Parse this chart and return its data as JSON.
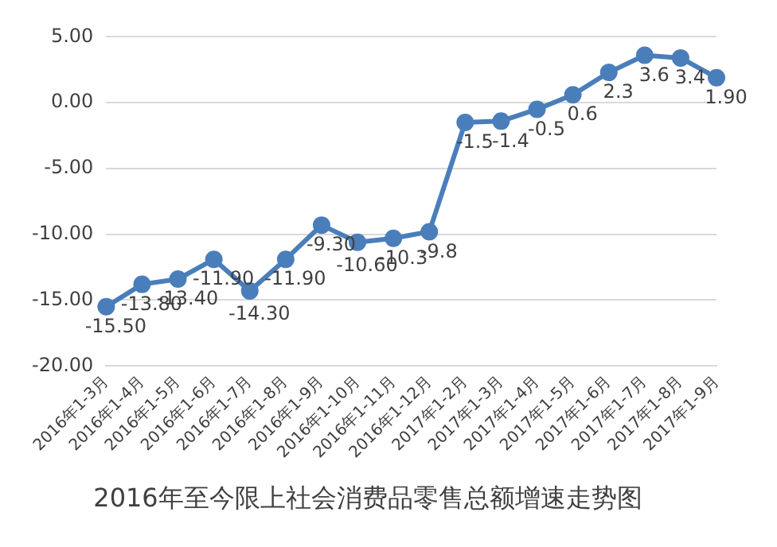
{
  "chart_data": {
    "type": "line",
    "title": "2016年至今限上社会消费品零售总额增速走势图",
    "categories": [
      "2016年1-3月",
      "2016年1-4月",
      "2016年1-5月",
      "2016年1-6月",
      "2016年1-7月",
      "2016年1-8月",
      "2016年1-9月",
      "2016年1-10月",
      "2016年1-11月",
      "2016年1-12月",
      "2017年1-2月",
      "2017年1-3月",
      "2017年1-4月",
      "2017年1-5月",
      "2017年1-6月",
      "2017年1-7月",
      "2017年1-8月",
      "2017年1-9月"
    ],
    "series": [
      {
        "color": "#4a7ebb",
        "values": [
          -15.5,
          -13.8,
          -13.4,
          -11.9,
          -14.3,
          -11.9,
          -9.3,
          -10.6,
          -10.3,
          -9.8,
          -1.5,
          -1.4,
          -0.5,
          0.6,
          2.3,
          3.6,
          3.4,
          1.9
        ],
        "value_labels": [
          "-15.50",
          "-13.80",
          "-13.40",
          "-11.90",
          "-14.30",
          "-11.90",
          "-9.30",
          "-10.60",
          "-10.3",
          "-9.8",
          "-1.5",
          "-1.4",
          "-0.5",
          "0.6",
          "2.3",
          "3.6",
          "3.4",
          "1.90"
        ]
      }
    ],
    "ylim": [
      -20,
      5
    ],
    "yticks": [
      {
        "value": -20,
        "label": "-20.00"
      },
      {
        "value": -15,
        "label": "-15.00"
      },
      {
        "value": -10,
        "label": "-10.00"
      },
      {
        "value": -5,
        "label": "-5.00"
      },
      {
        "value": 0,
        "label": "0.00"
      },
      {
        "value": 5,
        "label": "5.00"
      }
    ],
    "grid": "y",
    "legend": false,
    "marker": "circle",
    "line_style": "solid"
  }
}
